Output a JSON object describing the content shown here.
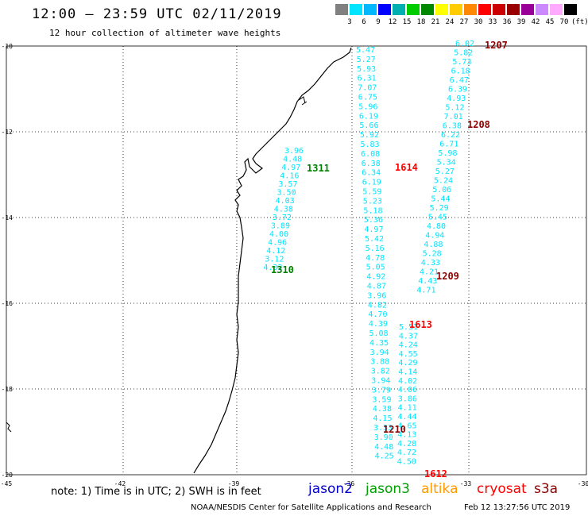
{
  "header": {
    "title": "12:00 – 23:59 UTC 02/11/2019",
    "subtitle": "12 hour collection of altimeter wave heights"
  },
  "color_scale": {
    "labels": [
      "3",
      "6",
      "9",
      "12",
      "15",
      "18",
      "21",
      "24",
      "27",
      "30",
      "33",
      "36",
      "39",
      "42",
      "45",
      "70",
      "(ft)"
    ],
    "colors": [
      "#808080",
      "#00e5ff",
      "#00b8ff",
      "#0000ff",
      "#00b0b0",
      "#00cc00",
      "#008800",
      "#ffff00",
      "#ffcc00",
      "#ff8800",
      "#ff0000",
      "#cc0000",
      "#990000",
      "#990099",
      "#cc88ff",
      "#ffaaff",
      "#000000"
    ]
  },
  "map": {
    "lon_ticks": [
      "-45",
      "-42",
      "-39",
      "-36",
      "-33",
      "-30"
    ],
    "lat_ticks": [
      "-10",
      "-12",
      "-14",
      "-16",
      "-18",
      "-20"
    ],
    "pass_labels": [
      {
        "id": "1207",
        "color": "#8b0000"
      },
      {
        "id": "1208",
        "color": "#8b0000"
      },
      {
        "id": "1209",
        "color": "#8b0000"
      },
      {
        "id": "1210",
        "color": "#8b0000"
      },
      {
        "id": "1311",
        "color": "#008000"
      },
      {
        "id": "1310",
        "color": "#008000"
      },
      {
        "id": "1614",
        "color": "#ff0000"
      },
      {
        "id": "1613",
        "color": "#ff0000"
      },
      {
        "id": "1612",
        "color": "#ff0000"
      }
    ],
    "tracks": [
      {
        "name": "track-1311-1310",
        "values": [
          "3.96",
          "4.48",
          "4.97",
          "4.16",
          "3.57",
          "3.50",
          "4.03",
          "4.38",
          "3.72",
          "3.89",
          "4.00",
          "4.96",
          "4.12",
          "3.12",
          "4.32"
        ]
      },
      {
        "name": "track-1614",
        "values": [
          "5.47",
          "5.27",
          "5.93",
          "6.31",
          "7.07",
          "6.75",
          "5.96",
          "6.19",
          "5.66",
          "5.92",
          "5.83",
          "6.08",
          "6.38",
          "6.34",
          "6.19",
          "5.59",
          "5.23",
          "5.18",
          "5.36",
          "4.97",
          "5.42",
          "5.16",
          "4.78",
          "5.05",
          "4.92",
          "4.87",
          "3.96",
          "4.82",
          "4.70",
          "4.39",
          "5.08",
          "4.35",
          "3.94",
          "3.88",
          "3.82",
          "3.94",
          "3.79",
          "3.59",
          "4.38",
          "4.15",
          "3.33",
          "3.90",
          "4.48",
          "4.25"
        ]
      },
      {
        "name": "track-1207-1209",
        "values": [
          "6.02",
          "5.82",
          "5.73",
          "6.18",
          "6.47",
          "6.39",
          "4.93",
          "5.12",
          "7.01",
          "6.38",
          "6.22",
          "6.71",
          "5.98",
          "5.34",
          "5.27",
          "5.24",
          "5.06",
          "5.44",
          "5.29",
          "5.45",
          "4.80",
          "4.94",
          "4.88",
          "5.28",
          "4.33",
          "4.21",
          "4.43",
          "4.71"
        ]
      },
      {
        "name": "track-1613-1612",
        "values": [
          "5.51",
          "4.37",
          "4.24",
          "4.55",
          "4.29",
          "4.14",
          "4.02",
          "4.06",
          "3.86",
          "4.11",
          "4.44",
          "4.65",
          "4.13",
          "4.28",
          "4.72",
          "4.50"
        ]
      }
    ]
  },
  "footer": {
    "note": "note: 1) Time is in UTC; 2) SWH is in feet",
    "legend": [
      {
        "label": "jason2",
        "color": "#0000cc"
      },
      {
        "label": "jason3",
        "color": "#00a000"
      },
      {
        "label": "altika",
        "color": "#ff9900"
      },
      {
        "label": "cryosat",
        "color": "#ff0000"
      },
      {
        "label": "s3a",
        "color": "#8b0000"
      }
    ],
    "credit": "NOAA/NESDIS Center for Satellite Applications and Research",
    "stamp": "Feb 12 13:27:56 UTC 2019"
  }
}
